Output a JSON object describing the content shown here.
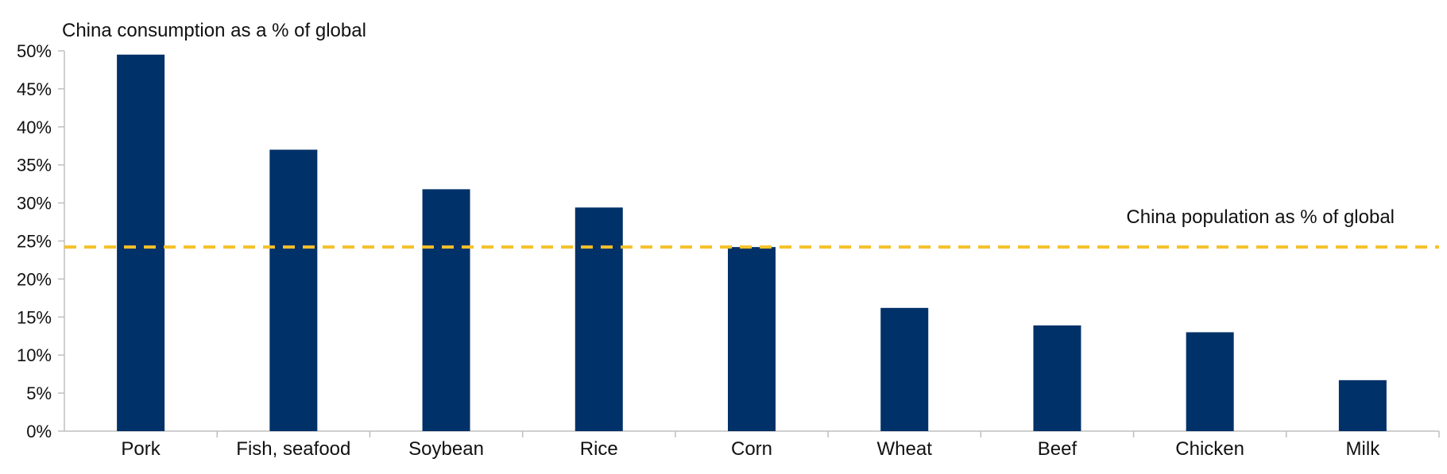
{
  "chart_data": {
    "type": "bar",
    "ylabel": "China consumption as a % of global",
    "categories": [
      "Pork",
      "Fish, seafood",
      "Soybean",
      "Rice",
      "Corn",
      "Wheat",
      "Beef",
      "Chicken",
      "Milk"
    ],
    "values": [
      49.5,
      37,
      31.8,
      29.4,
      24.2,
      16.2,
      13.9,
      13,
      6.7
    ],
    "y_ticks": [
      "0%",
      "5%",
      "10%",
      "15%",
      "20%",
      "25%",
      "30%",
      "35%",
      "40%",
      "45%",
      "50%"
    ],
    "ylim": [
      0,
      50
    ],
    "reference_line": {
      "label": "China population as % of global",
      "value": 24.2,
      "color": "#F5C02B"
    },
    "bar_color": "#003168",
    "axis_color": "#BFBFBF",
    "grid": false
  }
}
